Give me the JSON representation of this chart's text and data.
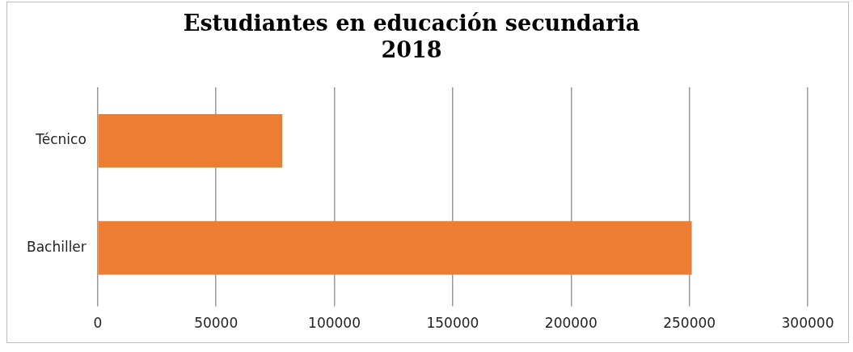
{
  "chart_data": {
    "type": "bar",
    "orientation": "horizontal",
    "title": "Estudiantes en educación secundaria\n2018",
    "categories": [
      "Técnico",
      "Bachiller"
    ],
    "values": [
      78000,
      251000
    ],
    "color": "#ed7d31",
    "xlim": [
      0,
      300000
    ],
    "xticks": [
      0,
      50000,
      100000,
      150000,
      200000,
      250000,
      300000
    ],
    "grid": "x",
    "legend": false
  }
}
